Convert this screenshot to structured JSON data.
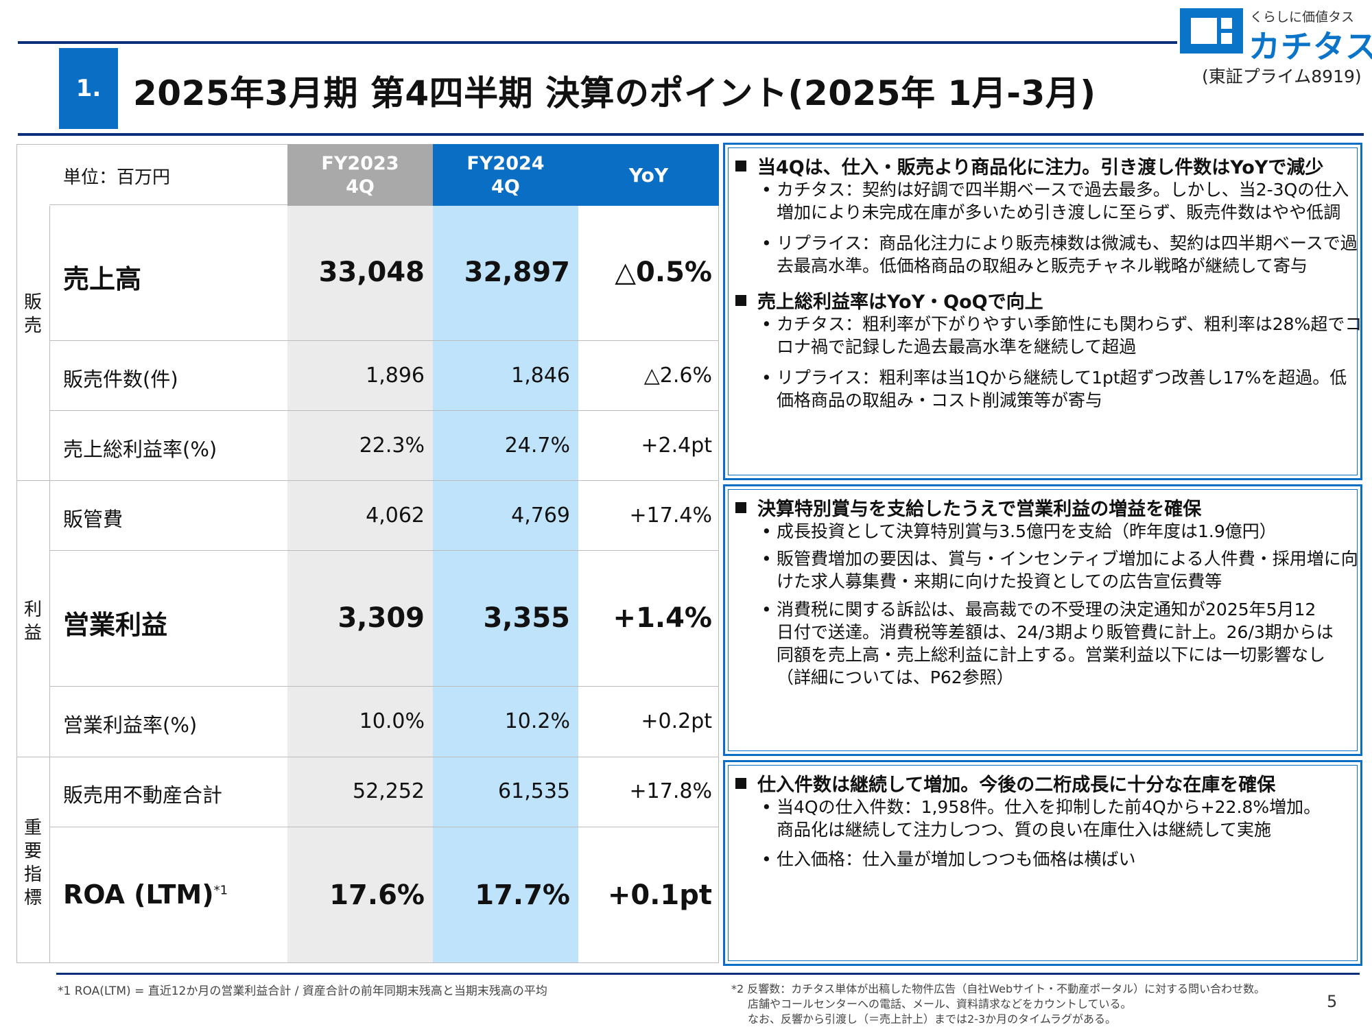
{
  "header": {
    "section_number": "1.",
    "title": "2025年3月期 第4四半期 決算のポイント(2025年 1月-3月)",
    "logo_tagline": "くらしに価値タス",
    "logo_name": "カチタス",
    "ticker": "(東証プライム8919)"
  },
  "table": {
    "unit": "単位：百万円",
    "columns": {
      "prev_line1": "FY2023",
      "prev_line2": "4Q",
      "curr_line1": "FY2024",
      "curr_line2": "4Q",
      "yoy": "YoY"
    },
    "sections": {
      "sales": "販\n売",
      "profit": "利\n益",
      "kpi": "重\n要\n指\n標"
    },
    "rows": [
      {
        "label": "売上高",
        "prev": "33,048",
        "curr": "32,897",
        "yoy": "△0.5%"
      },
      {
        "label": "販売件数(件)",
        "prev": "1,896",
        "curr": "1,846",
        "yoy": "△2.6%"
      },
      {
        "label": "売上総利益率(%)",
        "prev": "22.3%",
        "curr": "24.7%",
        "yoy": "+2.4pt"
      },
      {
        "label": "販管費",
        "prev": "4,062",
        "curr": "4,769",
        "yoy": "+17.4%"
      },
      {
        "label": "営業利益",
        "prev": "3,309",
        "curr": "3,355",
        "yoy": "+1.4%"
      },
      {
        "label": "営業利益率(%)",
        "prev": "10.0%",
        "curr": "10.2%",
        "yoy": "+0.2pt"
      },
      {
        "label": "販売用不動産合計",
        "prev": "52,252",
        "curr": "61,535",
        "yoy": "+17.8%"
      },
      {
        "label": "ROA (LTM)",
        "label_sup": "*1",
        "prev": "17.6%",
        "curr": "17.7%",
        "yoy": "+0.1pt"
      }
    ]
  },
  "boxes": [
    {
      "heading": "当4Qは、仕入・販売より商品化に注力。引き渡し件数はYoYで減少",
      "bullets": [
        [
          "カチタス：契約は好調で四半期ベースで過去最多。しかし、当2-3Qの仕入",
          "増加により未完成在庫が多いため引き渡しに至らず、販売件数はやや低調"
        ],
        [
          "リプライス：商品化注力により販売棟数は微減も、契約は四半期ベースで過",
          "去最高水準。低価格商品の取組みと販売チャネル戦略が継続して寄与"
        ]
      ],
      "heading2": "売上総利益率はYoY・QoQで向上",
      "bullets2": [
        [
          "カチタス：粗利率が下がりやすい季節性にも関わらず、粗利率は28%超でコ",
          "ロナ禍で記録した過去最高水準を継続して超過"
        ],
        [
          "リプライス：粗利率は当1Qから継続して1pt超ずつ改善し17%を超過。低",
          "価格商品の取組み・コスト削減策等が寄与"
        ]
      ]
    },
    {
      "heading": "決算特別賞与を支給したうえで営業利益の増益を確保",
      "bullets": [
        [
          "成長投資として決算特別賞与3.5億円を支給（昨年度は1.9億円）"
        ],
        [
          "販管費増加の要因は、賞与・インセンティブ増加による人件費・採用増に向",
          "けた求人募集費・来期に向けた投資としての広告宣伝費等"
        ],
        [
          "消費税に関する訴訟は、最高裁での不受理の決定通知が2025年5月12",
          "日付で送達。消費税等差額は、24/3期より販管費に計上。26/3期からは",
          "同額を売上高・売上総利益に計上する。営業利益以下には一切影響なし",
          "（詳細については、P62参照）"
        ]
      ]
    },
    {
      "heading": "仕入件数は継続して増加。今後の二桁成長に十分な在庫を確保",
      "bullets": [
        [
          "当4Qの仕入件数：1,958件。仕入を抑制した前4Qから+22.8%増加。",
          "商品化は継続して注力しつつ、質の良い在庫仕入は継続して実施"
        ],
        [
          "仕入価格：仕入量が増加しつつも価格は横ばい"
        ]
      ]
    }
  ],
  "footer": {
    "note1": "*1 ROA(LTM) = 直近12か月の営業利益合計 / 資産合計の前年同期末残高と当期末残高の平均",
    "note2_line1": "*2 反響数：カチタス単体が出稿した物件広告（自社Webサイト・不動産ポータル）に対する問い合わせ数。",
    "note2_line2": "店舗やコールセンターへの電話、メール、資料請求などをカウントしている。",
    "note2_line3": "なお、反響から引渡し（＝売上計上）までは2-3か月のタイムラグがある。",
    "page_number": "5"
  },
  "colors": {
    "accent_blue": "#0a6ec4",
    "navy_rule": "#0b2f7a",
    "highlight_column": "#bfe3fb",
    "gray_header": "#a9a9a9"
  }
}
